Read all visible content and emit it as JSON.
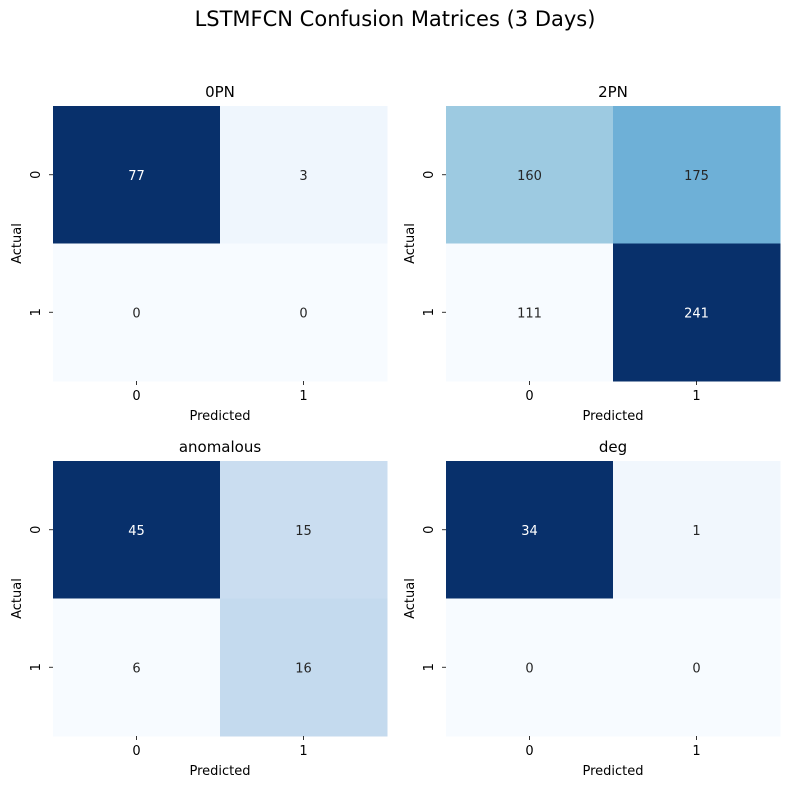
{
  "chart_data": {
    "type": "heatmap",
    "title": "LSTMFCN Confusion Matrices (3 Days)",
    "colormap": "Blues",
    "panels": [
      {
        "title": "0PN",
        "xlabel": "Predicted",
        "ylabel": "Actual",
        "x_ticks": [
          "0",
          "1"
        ],
        "y_ticks": [
          "0",
          "1"
        ],
        "matrix": [
          [
            77,
            3
          ],
          [
            0,
            0
          ]
        ]
      },
      {
        "title": "2PN",
        "xlabel": "Predicted",
        "ylabel": "Actual",
        "x_ticks": [
          "0",
          "1"
        ],
        "y_ticks": [
          "0",
          "1"
        ],
        "matrix": [
          [
            160,
            175
          ],
          [
            111,
            241
          ]
        ]
      },
      {
        "title": "anomalous",
        "xlabel": "Predicted",
        "ylabel": "Actual",
        "x_ticks": [
          "0",
          "1"
        ],
        "y_ticks": [
          "0",
          "1"
        ],
        "matrix": [
          [
            45,
            15
          ],
          [
            6,
            16
          ]
        ]
      },
      {
        "title": "deg",
        "xlabel": "Predicted",
        "ylabel": "Actual",
        "x_ticks": [
          "0",
          "1"
        ],
        "y_ticks": [
          "0",
          "1"
        ],
        "matrix": [
          [
            34,
            1
          ],
          [
            0,
            0
          ]
        ]
      }
    ]
  }
}
